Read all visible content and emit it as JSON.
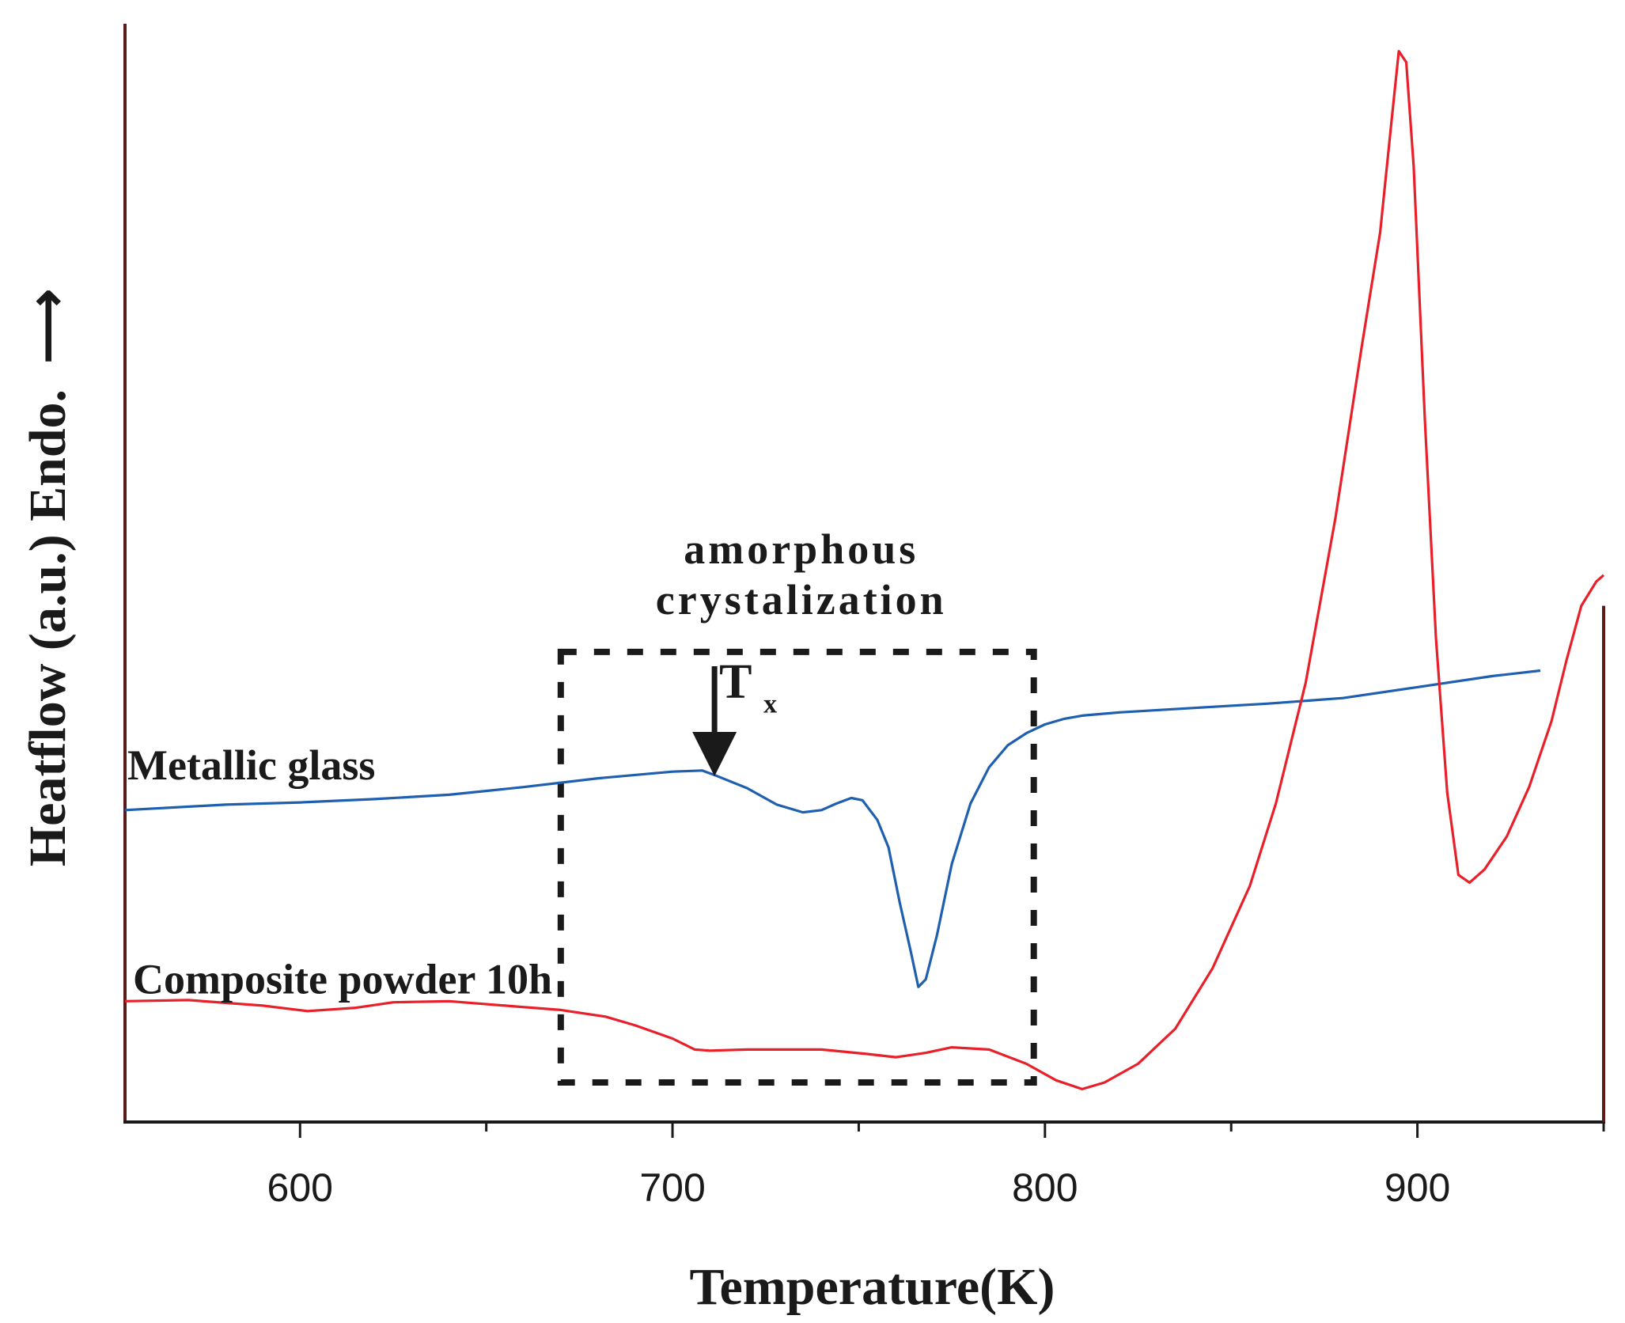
{
  "chart_data": {
    "type": "line",
    "title": "",
    "xlabel": "Temperature(K)",
    "ylabel": "Heatflow (a.u.) Endo.",
    "ylabel_arrow": "⟶",
    "xlim": [
      553,
      950
    ],
    "ylim": [
      0,
      100
    ],
    "x_ticks": [
      600,
      700,
      800,
      900
    ],
    "x_minor_ticks": [
      650,
      750,
      850,
      950
    ],
    "grid": false,
    "legend": "none",
    "series": [
      {
        "name": "Metallic glass",
        "color": "#1f5fb0",
        "points": [
          [
            553,
            28.4
          ],
          [
            580,
            28.9
          ],
          [
            600,
            29.1
          ],
          [
            620,
            29.4
          ],
          [
            640,
            29.8
          ],
          [
            660,
            30.5
          ],
          [
            680,
            31.3
          ],
          [
            700,
            31.9
          ],
          [
            708,
            32.0
          ],
          [
            712,
            31.5
          ],
          [
            720,
            30.4
          ],
          [
            728,
            28.9
          ],
          [
            735,
            28.2
          ],
          [
            740,
            28.4
          ],
          [
            744,
            29.0
          ],
          [
            748,
            29.5
          ],
          [
            751,
            29.3
          ],
          [
            755,
            27.5
          ],
          [
            758,
            25.0
          ],
          [
            761,
            20.0
          ],
          [
            764,
            15.5
          ],
          [
            766,
            12.3
          ],
          [
            768,
            13.0
          ],
          [
            771,
            17.0
          ],
          [
            775,
            23.5
          ],
          [
            780,
            29.0
          ],
          [
            785,
            32.3
          ],
          [
            790,
            34.3
          ],
          [
            795,
            35.4
          ],
          [
            800,
            36.2
          ],
          [
            805,
            36.7
          ],
          [
            810,
            37.0
          ],
          [
            820,
            37.3
          ],
          [
            840,
            37.7
          ],
          [
            860,
            38.1
          ],
          [
            880,
            38.6
          ],
          [
            900,
            39.6
          ],
          [
            920,
            40.6
          ],
          [
            933,
            41.1
          ]
        ]
      },
      {
        "name": "Composite powder 10h",
        "color": "#e8202a",
        "points": [
          [
            553,
            11.0
          ],
          [
            570,
            11.1
          ],
          [
            590,
            10.6
          ],
          [
            602,
            10.1
          ],
          [
            615,
            10.4
          ],
          [
            625,
            10.9
          ],
          [
            640,
            11.0
          ],
          [
            655,
            10.6
          ],
          [
            670,
            10.2
          ],
          [
            682,
            9.6
          ],
          [
            690,
            8.8
          ],
          [
            700,
            7.6
          ],
          [
            706,
            6.6
          ],
          [
            710,
            6.5
          ],
          [
            720,
            6.6
          ],
          [
            740,
            6.6
          ],
          [
            752,
            6.2
          ],
          [
            760,
            5.9
          ],
          [
            768,
            6.3
          ],
          [
            775,
            6.8
          ],
          [
            785,
            6.6
          ],
          [
            795,
            5.3
          ],
          [
            803,
            3.8
          ],
          [
            810,
            3.0
          ],
          [
            816,
            3.6
          ],
          [
            825,
            5.3
          ],
          [
            835,
            8.5
          ],
          [
            845,
            14.0
          ],
          [
            855,
            21.5
          ],
          [
            862,
            29.0
          ],
          [
            870,
            40.0
          ],
          [
            878,
            55.0
          ],
          [
            885,
            70.5
          ],
          [
            890,
            81.0
          ],
          [
            893,
            91.0
          ],
          [
            895,
            97.5
          ],
          [
            897,
            96.5
          ],
          [
            899,
            87.0
          ],
          [
            902,
            64.0
          ],
          [
            905,
            44.0
          ],
          [
            908,
            30.0
          ],
          [
            911,
            22.5
          ],
          [
            914,
            21.8
          ],
          [
            918,
            23.0
          ],
          [
            924,
            26.0
          ],
          [
            930,
            30.5
          ],
          [
            936,
            36.5
          ],
          [
            940,
            42.0
          ],
          [
            944,
            47.0
          ],
          [
            948,
            49.2
          ],
          [
            950,
            49.8
          ]
        ]
      }
    ],
    "series_labels": [
      {
        "text": "Metallic glass",
        "x": 553,
        "y": 32.5
      },
      {
        "text": "Composite powder 10h",
        "x": 553,
        "y": 13.0
      }
    ],
    "annotations": {
      "box": {
        "x0": 670,
        "x1": 797,
        "y0": 3.6,
        "y1": 42.8
      },
      "box_label_line1": "amorphous",
      "box_label_line2": "crystalization",
      "marker": "T",
      "marker_subscript": "x",
      "marker_x": 710
    }
  }
}
